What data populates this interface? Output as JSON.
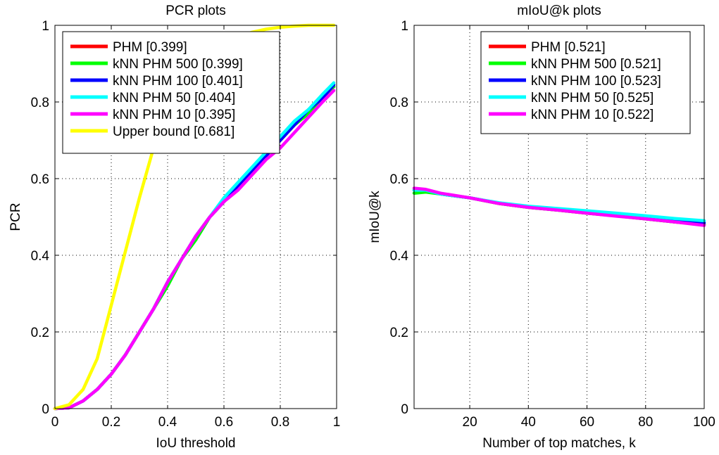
{
  "chart_data": [
    {
      "type": "line",
      "title": "PCR plots",
      "xlabel": "IoU threshold",
      "ylabel": "PCR",
      "xlim": [
        0,
        1
      ],
      "ylim": [
        0,
        1
      ],
      "xticks": [
        0,
        0.2,
        0.4,
        0.6,
        0.8,
        1
      ],
      "yticks": [
        0,
        0.2,
        0.4,
        0.6,
        0.8,
        1
      ],
      "xtick_labels": [
        "0",
        "0.2",
        "0.4",
        "0.6",
        "0.8",
        "1"
      ],
      "ytick_labels": [
        "0",
        "0.2",
        "0.4",
        "0.6",
        "0.8",
        "1"
      ],
      "grid": true,
      "legend_position": "top-left",
      "series": [
        {
          "name": "PHM [0.399]",
          "color": "#ff0000",
          "x": [
            0,
            0.05,
            0.1,
            0.15,
            0.2,
            0.25,
            0.3,
            0.35,
            0.4,
            0.45,
            0.5,
            0.55,
            0.6,
            0.65,
            0.7,
            0.75,
            0.8,
            0.85,
            0.9,
            0.95,
            0.99
          ],
          "y": [
            0,
            0.002,
            0.02,
            0.05,
            0.09,
            0.14,
            0.2,
            0.26,
            0.33,
            0.39,
            0.45,
            0.5,
            0.54,
            0.58,
            0.62,
            0.66,
            0.7,
            0.74,
            0.77,
            0.81,
            0.84
          ]
        },
        {
          "name": "kNN PHM 500 [0.399]",
          "color": "#00ff00",
          "x": [
            0,
            0.05,
            0.1,
            0.15,
            0.2,
            0.25,
            0.3,
            0.35,
            0.4,
            0.45,
            0.5,
            0.55,
            0.6,
            0.65,
            0.7,
            0.75,
            0.8,
            0.85,
            0.9,
            0.95,
            0.99
          ],
          "y": [
            0,
            0.002,
            0.02,
            0.05,
            0.09,
            0.14,
            0.2,
            0.26,
            0.32,
            0.39,
            0.44,
            0.5,
            0.54,
            0.58,
            0.62,
            0.66,
            0.7,
            0.74,
            0.77,
            0.81,
            0.84
          ]
        },
        {
          "name": "kNN PHM 100 [0.401]",
          "color": "#0000ff",
          "x": [
            0,
            0.05,
            0.1,
            0.15,
            0.2,
            0.25,
            0.3,
            0.35,
            0.4,
            0.45,
            0.5,
            0.55,
            0.6,
            0.65,
            0.7,
            0.75,
            0.8,
            0.85,
            0.9,
            0.95,
            0.99
          ],
          "y": [
            0,
            0.002,
            0.02,
            0.05,
            0.09,
            0.14,
            0.2,
            0.26,
            0.33,
            0.39,
            0.45,
            0.5,
            0.54,
            0.58,
            0.62,
            0.66,
            0.7,
            0.74,
            0.78,
            0.81,
            0.845
          ]
        },
        {
          "name": "kNN PHM 50 [0.404]",
          "color": "#00ffff",
          "x": [
            0,
            0.05,
            0.1,
            0.15,
            0.2,
            0.25,
            0.3,
            0.35,
            0.4,
            0.45,
            0.5,
            0.55,
            0.6,
            0.65,
            0.7,
            0.75,
            0.8,
            0.85,
            0.9,
            0.95,
            0.99
          ],
          "y": [
            0,
            0.002,
            0.02,
            0.05,
            0.09,
            0.14,
            0.2,
            0.26,
            0.33,
            0.39,
            0.45,
            0.5,
            0.55,
            0.59,
            0.63,
            0.67,
            0.71,
            0.75,
            0.78,
            0.82,
            0.85
          ]
        },
        {
          "name": "kNN PHM 10 [0.395]",
          "color": "#ff00ff",
          "x": [
            0,
            0.05,
            0.1,
            0.15,
            0.2,
            0.25,
            0.3,
            0.35,
            0.4,
            0.45,
            0.5,
            0.55,
            0.6,
            0.65,
            0.7,
            0.75,
            0.8,
            0.85,
            0.9,
            0.95,
            0.99
          ],
          "y": [
            0,
            0.002,
            0.02,
            0.05,
            0.09,
            0.14,
            0.2,
            0.26,
            0.33,
            0.39,
            0.45,
            0.5,
            0.54,
            0.57,
            0.61,
            0.65,
            0.68,
            0.72,
            0.76,
            0.8,
            0.83
          ]
        },
        {
          "name": "Upper bound [0.681]",
          "color": "#ffff00",
          "x": [
            0,
            0.05,
            0.1,
            0.15,
            0.2,
            0.25,
            0.3,
            0.35,
            0.4,
            0.45,
            0.5,
            0.55,
            0.6,
            0.65,
            0.7,
            0.75,
            0.8,
            0.85,
            0.9,
            0.95,
            0.99
          ],
          "y": [
            0,
            0.01,
            0.05,
            0.13,
            0.27,
            0.41,
            0.55,
            0.68,
            0.78,
            0.85,
            0.9,
            0.93,
            0.955,
            0.97,
            0.982,
            0.99,
            0.995,
            0.998,
            1.0,
            1.0,
            1.0
          ]
        }
      ]
    },
    {
      "type": "line",
      "title": "mIoU@k plots",
      "xlabel": "Number of top matches, k",
      "ylabel": "mIoU@k",
      "xlim": [
        1,
        100
      ],
      "ylim": [
        0,
        1
      ],
      "xticks": [
        20,
        40,
        60,
        80,
        100
      ],
      "yticks": [
        0,
        0.2,
        0.4,
        0.6,
        0.8,
        1
      ],
      "xtick_labels": [
        "20",
        "40",
        "60",
        "80",
        "100"
      ],
      "ytick_labels": [
        "0",
        "0.2",
        "0.4",
        "0.6",
        "0.8",
        "1"
      ],
      "grid": true,
      "legend_position": "top-right",
      "series": [
        {
          "name": "PHM [0.521]",
          "color": "#ff0000",
          "x": [
            1,
            5,
            10,
            20,
            30,
            40,
            50,
            60,
            70,
            80,
            90,
            100
          ],
          "y": [
            0.57,
            0.57,
            0.56,
            0.55,
            0.535,
            0.525,
            0.518,
            0.51,
            0.503,
            0.495,
            0.487,
            0.48
          ]
        },
        {
          "name": "kNN PHM 500 [0.521]",
          "color": "#00ff00",
          "x": [
            1,
            5,
            10,
            20,
            30,
            40,
            50,
            60,
            70,
            80,
            90,
            100
          ],
          "y": [
            0.562,
            0.565,
            0.56,
            0.55,
            0.535,
            0.525,
            0.518,
            0.51,
            0.503,
            0.495,
            0.487,
            0.48
          ]
        },
        {
          "name": "kNN PHM 100 [0.523]",
          "color": "#0000ff",
          "x": [
            1,
            5,
            10,
            20,
            30,
            40,
            50,
            60,
            70,
            80,
            90,
            100
          ],
          "y": [
            0.57,
            0.57,
            0.56,
            0.55,
            0.536,
            0.527,
            0.52,
            0.513,
            0.506,
            0.499,
            0.491,
            0.485
          ]
        },
        {
          "name": "kNN PHM 50 [0.525]",
          "color": "#00ffff",
          "x": [
            1,
            5,
            10,
            20,
            30,
            40,
            50,
            60,
            70,
            80,
            90,
            100
          ],
          "y": [
            0.57,
            0.57,
            0.56,
            0.55,
            0.537,
            0.528,
            0.522,
            0.516,
            0.51,
            0.503,
            0.496,
            0.49
          ]
        },
        {
          "name": "kNN PHM 10 [0.522]",
          "color": "#ff00ff",
          "x": [
            1,
            5,
            10,
            20,
            30,
            40,
            50,
            60,
            70,
            80,
            90,
            100
          ],
          "y": [
            0.575,
            0.572,
            0.562,
            0.55,
            0.535,
            0.525,
            0.518,
            0.51,
            0.502,
            0.495,
            0.487,
            0.478
          ]
        }
      ]
    }
  ]
}
